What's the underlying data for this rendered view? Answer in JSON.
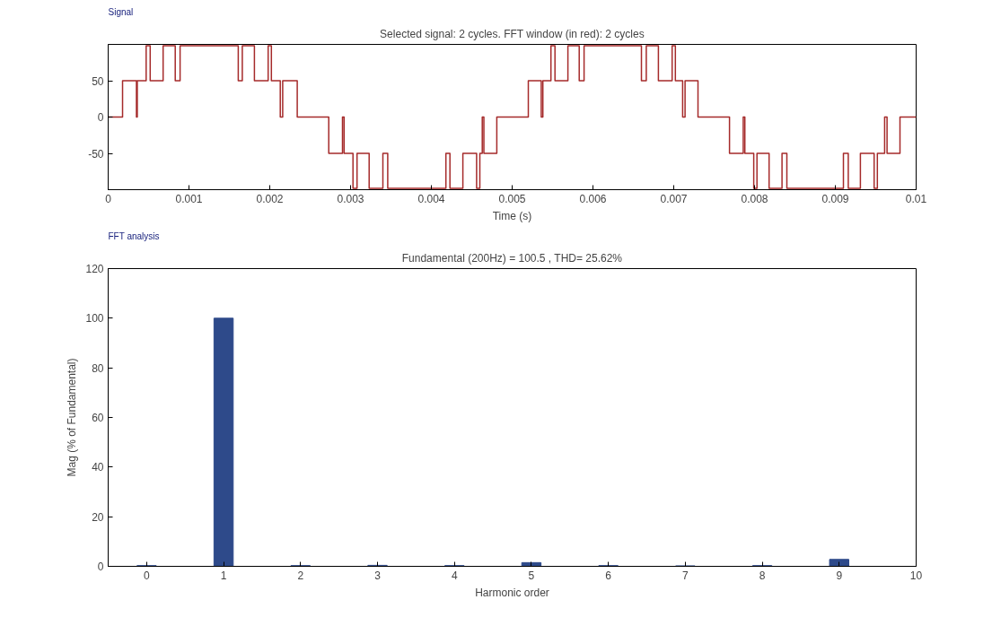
{
  "chart_data": [
    {
      "type": "step",
      "title": "Selected signal: 2 cycles. FFT window (in red): 2 cycles",
      "xlabel": "Time (s)",
      "annotations": [
        "Signal"
      ],
      "x": [
        0,
        0.000178,
        0.00035,
        0.00036,
        0.00047,
        0.00052,
        0.00068,
        0.00083,
        0.00089,
        0.00161,
        0.00166,
        0.00181,
        0.00198,
        0.00202,
        0.00213,
        0.00216,
        0.00234,
        0.00273,
        0.0029,
        0.00292,
        0.00303,
        0.00308,
        0.00323,
        0.0034,
        0.00346,
        0.00418,
        0.00423,
        0.00439,
        0.00456,
        0.0046,
        0.00463,
        0.00465,
        0.00481,
        0.0052,
        0.00536,
        0.00538,
        0.00548,
        0.00553,
        0.00569,
        0.00583,
        0.00589,
        0.0066,
        0.00666,
        0.00681,
        0.00698,
        0.00702,
        0.00711,
        0.00714,
        0.0073,
        0.00769,
        0.00786,
        0.00788,
        0.00799,
        0.00803,
        0.00818,
        0.00834,
        0.0084,
        0.0091,
        0.00916,
        0.00931,
        0.00948,
        0.00952,
        0.00961,
        0.00964,
        0.0098,
        0.01
      ],
      "series": [
        {
          "color": "#a52a2a",
          "values": [
            0,
            50,
            0,
            50,
            98,
            50,
            98,
            50,
            98,
            50,
            98,
            50,
            98,
            50,
            0,
            50,
            0,
            -50,
            0,
            -50,
            -98,
            -50,
            -98,
            -50,
            -98,
            -50,
            -98,
            -50,
            -98,
            -50,
            0,
            -50,
            0,
            50,
            0,
            50,
            98,
            50,
            98,
            50,
            98,
            50,
            98,
            50,
            98,
            50,
            0,
            50,
            0,
            -50,
            0,
            -50,
            -98,
            -50,
            -98,
            -50,
            -98,
            -50,
            -98,
            -50,
            -98,
            -50,
            0,
            -50,
            0,
            0
          ]
        }
      ],
      "xlim": [
        0,
        0.01
      ],
      "ylim": [
        -100,
        100
      ],
      "xticks": [
        0,
        0.001,
        0.002,
        0.003,
        0.004,
        0.005,
        0.006,
        0.007,
        0.008,
        0.009,
        0.01
      ],
      "yticks": [
        -50,
        0,
        50
      ],
      "grid": false
    },
    {
      "type": "bar",
      "title": "Fundamental (200Hz) = 100.5 , THD= 25.62%",
      "xlabel": "Harmonic order",
      "ylabel": "Mag (% of Fundamental)",
      "annotations": [
        "FFT analysis"
      ],
      "x": [
        0,
        1,
        2,
        3,
        4,
        5,
        6,
        7,
        8,
        9
      ],
      "series": [
        {
          "color": "#2e4a8a",
          "values": [
            0.3,
            100,
            0.3,
            0.4,
            0.3,
            1.5,
            0.3,
            0.2,
            0.3,
            2.8
          ]
        }
      ],
      "xlim": [
        -0.5,
        10
      ],
      "ylim": [
        0,
        120
      ],
      "xticks": [
        0,
        1,
        2,
        3,
        4,
        5,
        6,
        7,
        8,
        9,
        10
      ],
      "yticks": [
        0,
        20,
        40,
        60,
        80,
        100,
        120
      ],
      "grid": false
    }
  ]
}
